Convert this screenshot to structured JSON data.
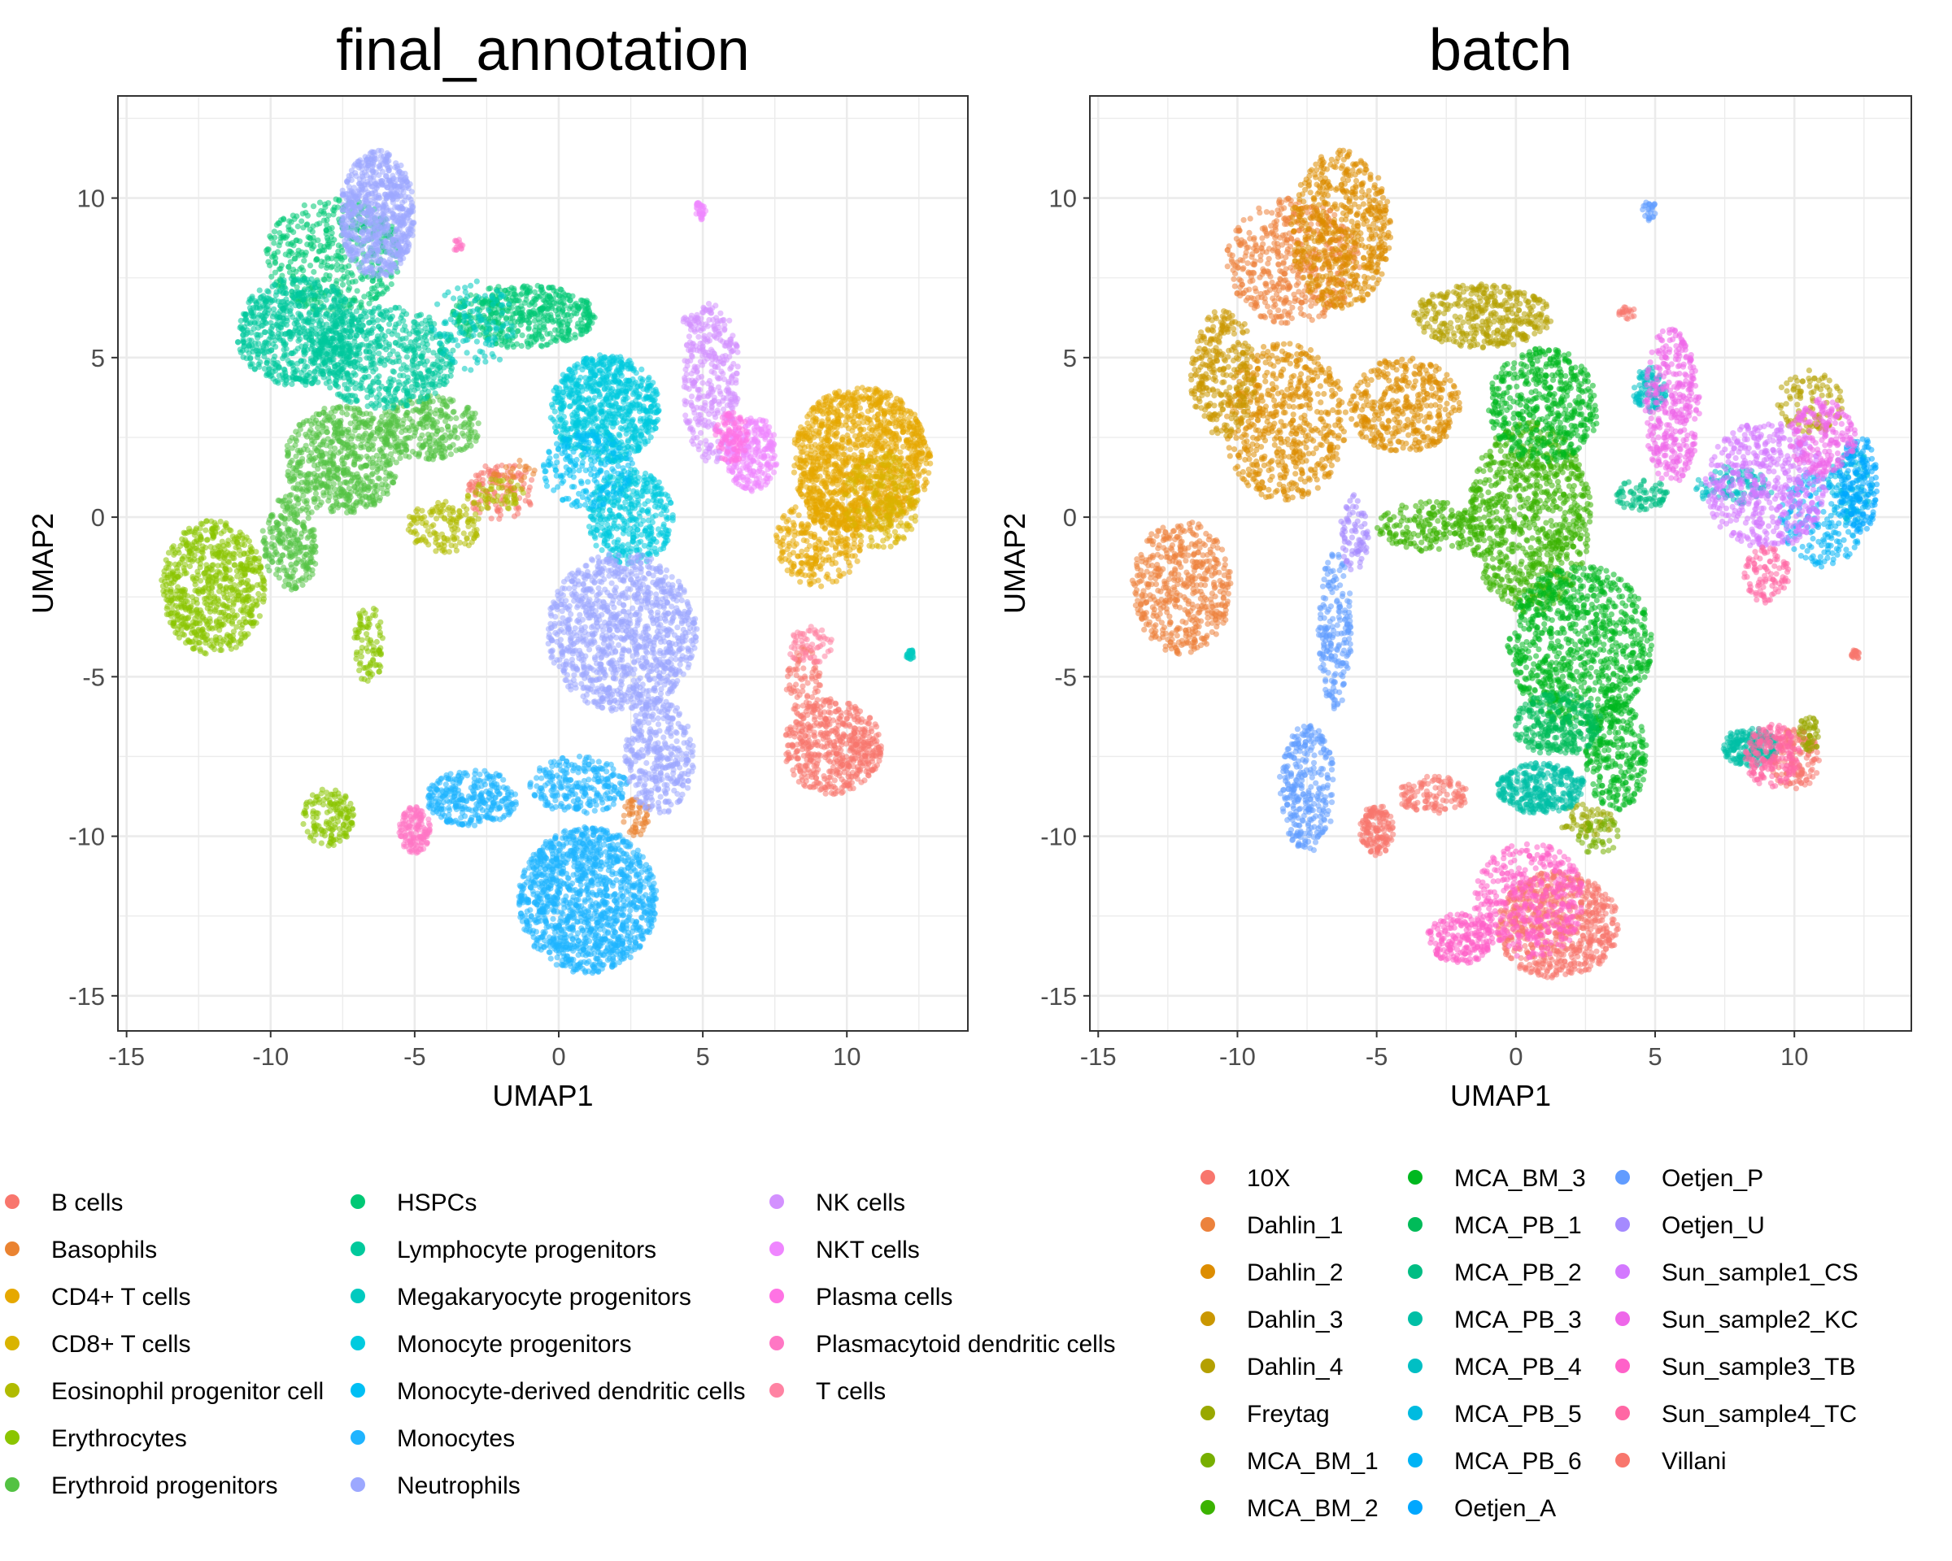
{
  "chart_data": [
    {
      "type": "scatter",
      "title": "final_annotation",
      "xlabel": "UMAP1",
      "ylabel": "UMAP2",
      "xlim": [
        -15.3,
        14.2
      ],
      "ylim": [
        -16.1,
        13.2
      ],
      "xticks": [
        -15,
        -10,
        -5,
        0,
        5,
        10
      ],
      "yticks": [
        -15,
        -10,
        -5,
        0,
        5,
        10
      ],
      "x_tick_labels": [
        "-15",
        "-10",
        "-5",
        "0",
        "5",
        "10"
      ],
      "y_tick_labels": [
        "-15",
        "-10",
        "-5",
        "0",
        "5",
        "10"
      ],
      "grid": true,
      "legend_position": "bottom",
      "legend_columns": 3,
      "series": [
        {
          "name": "B cells",
          "color": "#F8766D",
          "regions": [
            {
              "cx": 9.5,
              "cy": -7.2,
              "rx": 1.7,
              "ry": 1.5,
              "n": 520
            },
            {
              "cx": 8.5,
              "cy": -5.2,
              "rx": 0.6,
              "ry": 1.2,
              "n": 80
            },
            {
              "cx": -2.0,
              "cy": 0.8,
              "rx": 1.2,
              "ry": 0.9,
              "n": 120
            }
          ]
        },
        {
          "name": "Basophils",
          "color": "#EA8331",
          "regions": [
            {
              "cx": 2.7,
              "cy": -9.4,
              "rx": 0.5,
              "ry": 0.6,
              "n": 50
            },
            {
              "cx": -1.5,
              "cy": 1.3,
              "rx": 0.8,
              "ry": 0.5,
              "n": 30
            }
          ]
        },
        {
          "name": "CD4+ T cells",
          "color": "#E6A800",
          "regions": [
            {
              "cx": 10.5,
              "cy": 1.8,
              "rx": 2.4,
              "ry": 2.3,
              "n": 1300
            },
            {
              "cx": 9.0,
              "cy": -0.8,
              "rx": 1.5,
              "ry": 1.4,
              "n": 300
            }
          ]
        },
        {
          "name": "CD8+ T cells",
          "color": "#D9B400",
          "regions": [
            {
              "cx": 11.2,
              "cy": 0.5,
              "rx": 1.3,
              "ry": 1.5,
              "n": 200
            }
          ]
        },
        {
          "name": "Eosinophil progenitor cell",
          "color": "#B0BB00",
          "regions": [
            {
              "cx": -4.0,
              "cy": -0.3,
              "rx": 1.3,
              "ry": 0.8,
              "n": 140
            },
            {
              "cx": -2.2,
              "cy": 0.7,
              "rx": 1.0,
              "ry": 0.5,
              "n": 60
            }
          ]
        },
        {
          "name": "Erythrocytes",
          "color": "#8BC500",
          "regions": [
            {
              "cx": -12.0,
              "cy": -2.2,
              "rx": 1.8,
              "ry": 2.1,
              "n": 700
            },
            {
              "cx": -8.0,
              "cy": -9.4,
              "rx": 0.9,
              "ry": 0.9,
              "n": 150
            },
            {
              "cx": -6.6,
              "cy": -4.0,
              "rx": 0.5,
              "ry": 1.3,
              "n": 90
            }
          ]
        },
        {
          "name": "Erythroid progenitors",
          "color": "#53C243",
          "regions": [
            {
              "cx": -7.5,
              "cy": 1.8,
              "rx": 2.0,
              "ry": 1.7,
              "n": 600
            },
            {
              "cx": -9.3,
              "cy": -0.8,
              "rx": 1.0,
              "ry": 1.5,
              "n": 250
            },
            {
              "cx": -4.5,
              "cy": 2.8,
              "rx": 1.8,
              "ry": 1.0,
              "n": 300
            }
          ]
        },
        {
          "name": "HSPCs",
          "color": "#00C875",
          "regions": [
            {
              "cx": -1.2,
              "cy": 6.3,
              "rx": 2.5,
              "ry": 1.0,
              "n": 500
            },
            {
              "cx": -7.8,
              "cy": 8.2,
              "rx": 2.4,
              "ry": 1.8,
              "n": 450
            }
          ]
        },
        {
          "name": "Lymphocyte progenitors",
          "color": "#00C99C",
          "regions": [
            {
              "cx": -9.0,
              "cy": 5.8,
              "rx": 2.2,
              "ry": 1.7,
              "n": 700
            },
            {
              "cx": -6.0,
              "cy": 5.0,
              "rx": 2.5,
              "ry": 1.6,
              "n": 600
            }
          ]
        },
        {
          "name": "Megakaryocyte progenitors",
          "color": "#00CABF",
          "regions": [
            {
              "cx": 12.2,
              "cy": -4.3,
              "rx": 0.15,
              "ry": 0.15,
              "n": 25
            },
            {
              "cx": -3.0,
              "cy": 6.0,
              "rx": 1.5,
              "ry": 1.4,
              "n": 120
            }
          ]
        },
        {
          "name": "Monocyte progenitors",
          "color": "#00CBDF",
          "regions": [
            {
              "cx": 1.6,
              "cy": 3.4,
              "rx": 1.9,
              "ry": 1.7,
              "n": 800
            },
            {
              "cx": 2.5,
              "cy": 0.0,
              "rx": 1.5,
              "ry": 1.5,
              "n": 400
            }
          ]
        },
        {
          "name": "Monocyte-derived dendritic cells",
          "color": "#00BFF4",
          "regions": [
            {
              "cx": 1.0,
              "cy": 1.5,
              "rx": 1.6,
              "ry": 1.2,
              "n": 200
            }
          ]
        },
        {
          "name": "Monocytes",
          "color": "#1FB4FF",
          "regions": [
            {
              "cx": 1.0,
              "cy": -12.0,
              "rx": 2.4,
              "ry": 2.3,
              "n": 1300
            },
            {
              "cx": -3.0,
              "cy": -8.8,
              "rx": 1.6,
              "ry": 0.9,
              "n": 300
            },
            {
              "cx": 0.7,
              "cy": -8.4,
              "rx": 1.7,
              "ry": 0.9,
              "n": 250
            }
          ]
        },
        {
          "name": "Neutrophils",
          "color": "#9CA8FF",
          "regions": [
            {
              "cx": -6.3,
              "cy": 9.5,
              "rx": 1.3,
              "ry": 2.0,
              "n": 700
            },
            {
              "cx": 2.2,
              "cy": -3.6,
              "rx": 2.6,
              "ry": 2.5,
              "n": 1100
            },
            {
              "cx": 3.5,
              "cy": -7.5,
              "rx": 1.2,
              "ry": 1.8,
              "n": 350
            }
          ]
        },
        {
          "name": "NK cells",
          "color": "#D391FF",
          "regions": [
            {
              "cx": 5.3,
              "cy": 4.2,
              "rx": 1.0,
              "ry": 2.5,
              "n": 350
            },
            {
              "cx": 4.6,
              "cy": 6.2,
              "rx": 0.3,
              "ry": 0.2,
              "n": 20
            }
          ]
        },
        {
          "name": "NKT cells",
          "color": "#EF86FF",
          "regions": [
            {
              "cx": 6.7,
              "cy": 2.0,
              "rx": 0.9,
              "ry": 1.2,
              "n": 250
            },
            {
              "cx": 4.9,
              "cy": 9.6,
              "rx": 0.2,
              "ry": 0.3,
              "n": 30
            }
          ]
        },
        {
          "name": "Plasma cells",
          "color": "#FF73E4",
          "regions": [
            {
              "cx": 6.0,
              "cy": 2.5,
              "rx": 0.6,
              "ry": 0.8,
              "n": 100
            }
          ]
        },
        {
          "name": "Plasmacytoid dendritic cells",
          "color": "#FF77C4",
          "regions": [
            {
              "cx": -5.0,
              "cy": -9.8,
              "rx": 0.55,
              "ry": 0.75,
              "n": 150
            },
            {
              "cx": -3.5,
              "cy": 8.5,
              "rx": 0.2,
              "ry": 0.2,
              "n": 15
            }
          ]
        },
        {
          "name": "T cells",
          "color": "#FF83A3",
          "regions": [
            {
              "cx": 8.7,
              "cy": -4.0,
              "rx": 0.8,
              "ry": 0.6,
              "n": 60
            }
          ]
        }
      ]
    },
    {
      "type": "scatter",
      "title": "batch",
      "xlabel": "UMAP1",
      "ylabel": "UMAP2",
      "xlim": [
        -15.3,
        14.2
      ],
      "ylim": [
        -16.1,
        13.2
      ],
      "xticks": [
        -15,
        -10,
        -5,
        0,
        5,
        10
      ],
      "yticks": [
        -15,
        -10,
        -5,
        0,
        5,
        10
      ],
      "x_tick_labels": [
        "-15",
        "-10",
        "-5",
        "0",
        "5",
        "10"
      ],
      "y_tick_labels": [
        "-15",
        "-10",
        "-5",
        "0",
        "5",
        "10"
      ],
      "grid": true,
      "legend_position": "bottom",
      "legend_columns": 3,
      "series": [
        {
          "name": "10X",
          "color": "#F8766D",
          "regions": [
            {
              "cx": 1.5,
              "cy": -12.8,
              "rx": 2.2,
              "ry": 1.7,
              "n": 700
            },
            {
              "cx": 10.0,
              "cy": -7.6,
              "rx": 0.9,
              "ry": 1.0,
              "n": 150
            }
          ]
        },
        {
          "name": "Dahlin_1",
          "color": "#EC823C",
          "regions": [
            {
              "cx": -12.0,
              "cy": -2.2,
              "rx": 1.8,
              "ry": 2.1,
              "n": 500
            },
            {
              "cx": -8.0,
              "cy": 8.0,
              "rx": 2.4,
              "ry": 2.0,
              "n": 500
            }
          ]
        },
        {
          "name": "Dahlin_2",
          "color": "#DD8D00",
          "regions": [
            {
              "cx": -6.3,
              "cy": 9.0,
              "rx": 1.8,
              "ry": 2.5,
              "n": 600
            },
            {
              "cx": -8.3,
              "cy": 3.0,
              "rx": 2.2,
              "ry": 2.5,
              "n": 600
            },
            {
              "cx": -4.0,
              "cy": 3.5,
              "rx": 2.0,
              "ry": 1.5,
              "n": 400
            }
          ]
        },
        {
          "name": "Dahlin_3",
          "color": "#CA9700",
          "regions": [
            {
              "cx": -10.5,
              "cy": 4.5,
              "rx": 1.2,
              "ry": 2.0,
              "n": 300
            }
          ]
        },
        {
          "name": "Dahlin_4",
          "color": "#B4A000",
          "regions": [
            {
              "cx": -1.2,
              "cy": 6.3,
              "rx": 2.5,
              "ry": 1.0,
              "n": 400
            },
            {
              "cx": 10.6,
              "cy": 3.6,
              "rx": 1.2,
              "ry": 1.0,
              "n": 100
            }
          ]
        },
        {
          "name": "Freytag",
          "color": "#99A800",
          "regions": [
            {
              "cx": 10.5,
              "cy": -6.8,
              "rx": 0.4,
              "ry": 0.6,
              "n": 50
            },
            {
              "cx": 2.5,
              "cy": -9.5,
              "rx": 1.0,
              "ry": 0.6,
              "n": 60
            }
          ]
        },
        {
          "name": "MCA_BM_1",
          "color": "#77AF00",
          "regions": [
            {
              "cx": 3.0,
              "cy": -10.0,
              "rx": 0.8,
              "ry": 0.6,
              "n": 40
            }
          ]
        },
        {
          "name": "MCA_BM_2",
          "color": "#3BB300",
          "regions": [
            {
              "cx": 0.5,
              "cy": 0.0,
              "rx": 2.2,
              "ry": 3.0,
              "n": 900
            },
            {
              "cx": -3.0,
              "cy": -0.3,
              "rx": 2.0,
              "ry": 0.8,
              "n": 200
            }
          ]
        },
        {
          "name": "MCA_BM_3",
          "color": "#00B81F",
          "regions": [
            {
              "cx": 2.3,
              "cy": -4.0,
              "rx": 2.6,
              "ry": 2.5,
              "n": 900
            },
            {
              "cx": 1.0,
              "cy": 3.5,
              "rx": 2.0,
              "ry": 1.8,
              "n": 500
            },
            {
              "cx": 3.6,
              "cy": -7.5,
              "rx": 1.1,
              "ry": 1.7,
              "n": 300
            }
          ]
        },
        {
          "name": "MCA_PB_1",
          "color": "#00BB59",
          "regions": [
            {
              "cx": 1.5,
              "cy": -6.5,
              "rx": 1.6,
              "ry": 1.0,
              "n": 300
            }
          ]
        },
        {
          "name": "MCA_PB_2",
          "color": "#00BD83",
          "regions": [
            {
              "cx": 4.5,
              "cy": 0.7,
              "rx": 1.0,
              "ry": 0.5,
              "n": 80
            }
          ]
        },
        {
          "name": "MCA_PB_3",
          "color": "#00BFA6",
          "regions": [
            {
              "cx": 0.9,
              "cy": -8.5,
              "rx": 1.6,
              "ry": 0.8,
              "n": 350
            },
            {
              "cx": 8.4,
              "cy": -7.2,
              "rx": 1.0,
              "ry": 0.6,
              "n": 200
            }
          ]
        },
        {
          "name": "MCA_PB_4",
          "color": "#00BFC4",
          "regions": [
            {
              "cx": 4.8,
              "cy": 4.0,
              "rx": 0.6,
              "ry": 0.7,
              "n": 100
            },
            {
              "cx": 7.8,
              "cy": 1.0,
              "rx": 1.5,
              "ry": 0.6,
              "n": 100
            }
          ]
        },
        {
          "name": "MCA_PB_5",
          "color": "#00BBE0",
          "regions": [
            {
              "cx": 12.0,
              "cy": 1.0,
              "rx": 0.8,
              "ry": 1.2,
              "n": 100
            }
          ]
        },
        {
          "name": "MCA_PB_6",
          "color": "#00B3F5",
          "regions": [
            {
              "cx": 11.0,
              "cy": 0.0,
              "rx": 1.5,
              "ry": 1.6,
              "n": 200
            }
          ]
        },
        {
          "name": "Oetjen_A",
          "color": "#00A7FF",
          "regions": [
            {
              "cx": 12.3,
              "cy": 1.0,
              "rx": 0.7,
              "ry": 1.6,
              "n": 150
            }
          ]
        },
        {
          "name": "Oetjen_P",
          "color": "#619CFF",
          "regions": [
            {
              "cx": -7.5,
              "cy": -8.5,
              "rx": 1.0,
              "ry": 2.0,
              "n": 300
            },
            {
              "cx": -6.5,
              "cy": -3.5,
              "rx": 0.6,
              "ry": 2.5,
              "n": 200
            },
            {
              "cx": 4.8,
              "cy": 9.6,
              "rx": 0.25,
              "ry": 0.3,
              "n": 25
            }
          ]
        },
        {
          "name": "Oetjen_U",
          "color": "#A58AFF",
          "regions": [
            {
              "cx": -5.8,
              "cy": -0.5,
              "rx": 0.5,
              "ry": 1.2,
              "n": 80
            }
          ]
        },
        {
          "name": "Sun_sample1_CS",
          "color": "#D378FF",
          "regions": [
            {
              "cx": 9.0,
              "cy": 1.0,
              "rx": 2.2,
              "ry": 2.0,
              "n": 500
            }
          ]
        },
        {
          "name": "Sun_sample2_KC",
          "color": "#EE67E9",
          "regions": [
            {
              "cx": 5.6,
              "cy": 3.5,
              "rx": 1.0,
              "ry": 2.5,
              "n": 350
            },
            {
              "cx": 11.0,
              "cy": 2.5,
              "rx": 1.2,
              "ry": 1.2,
              "n": 200
            }
          ]
        },
        {
          "name": "Sun_sample3_TB",
          "color": "#FF61C9",
          "regions": [
            {
              "cx": 0.5,
              "cy": -12.0,
              "rx": 2.0,
              "ry": 1.8,
              "n": 400
            },
            {
              "cx": -2.0,
              "cy": -13.2,
              "rx": 1.2,
              "ry": 0.8,
              "n": 200
            }
          ]
        },
        {
          "name": "Sun_sample4_TC",
          "color": "#FF67A4",
          "regions": [
            {
              "cx": 9.2,
              "cy": -7.5,
              "rx": 1.0,
              "ry": 1.0,
              "n": 200
            },
            {
              "cx": 9.0,
              "cy": -1.8,
              "rx": 0.8,
              "ry": 0.9,
              "n": 100
            }
          ]
        },
        {
          "name": "Villani",
          "color": "#F8766D",
          "regions": [
            {
              "cx": -5.0,
              "cy": -9.8,
              "rx": 0.6,
              "ry": 0.8,
              "n": 150
            },
            {
              "cx": -3.0,
              "cy": -8.7,
              "rx": 1.3,
              "ry": 0.6,
              "n": 120
            },
            {
              "cx": 12.2,
              "cy": -4.3,
              "rx": 0.15,
              "ry": 0.15,
              "n": 20
            },
            {
              "cx": 4.0,
              "cy": 6.4,
              "rx": 0.3,
              "ry": 0.2,
              "n": 20
            }
          ]
        }
      ]
    }
  ]
}
